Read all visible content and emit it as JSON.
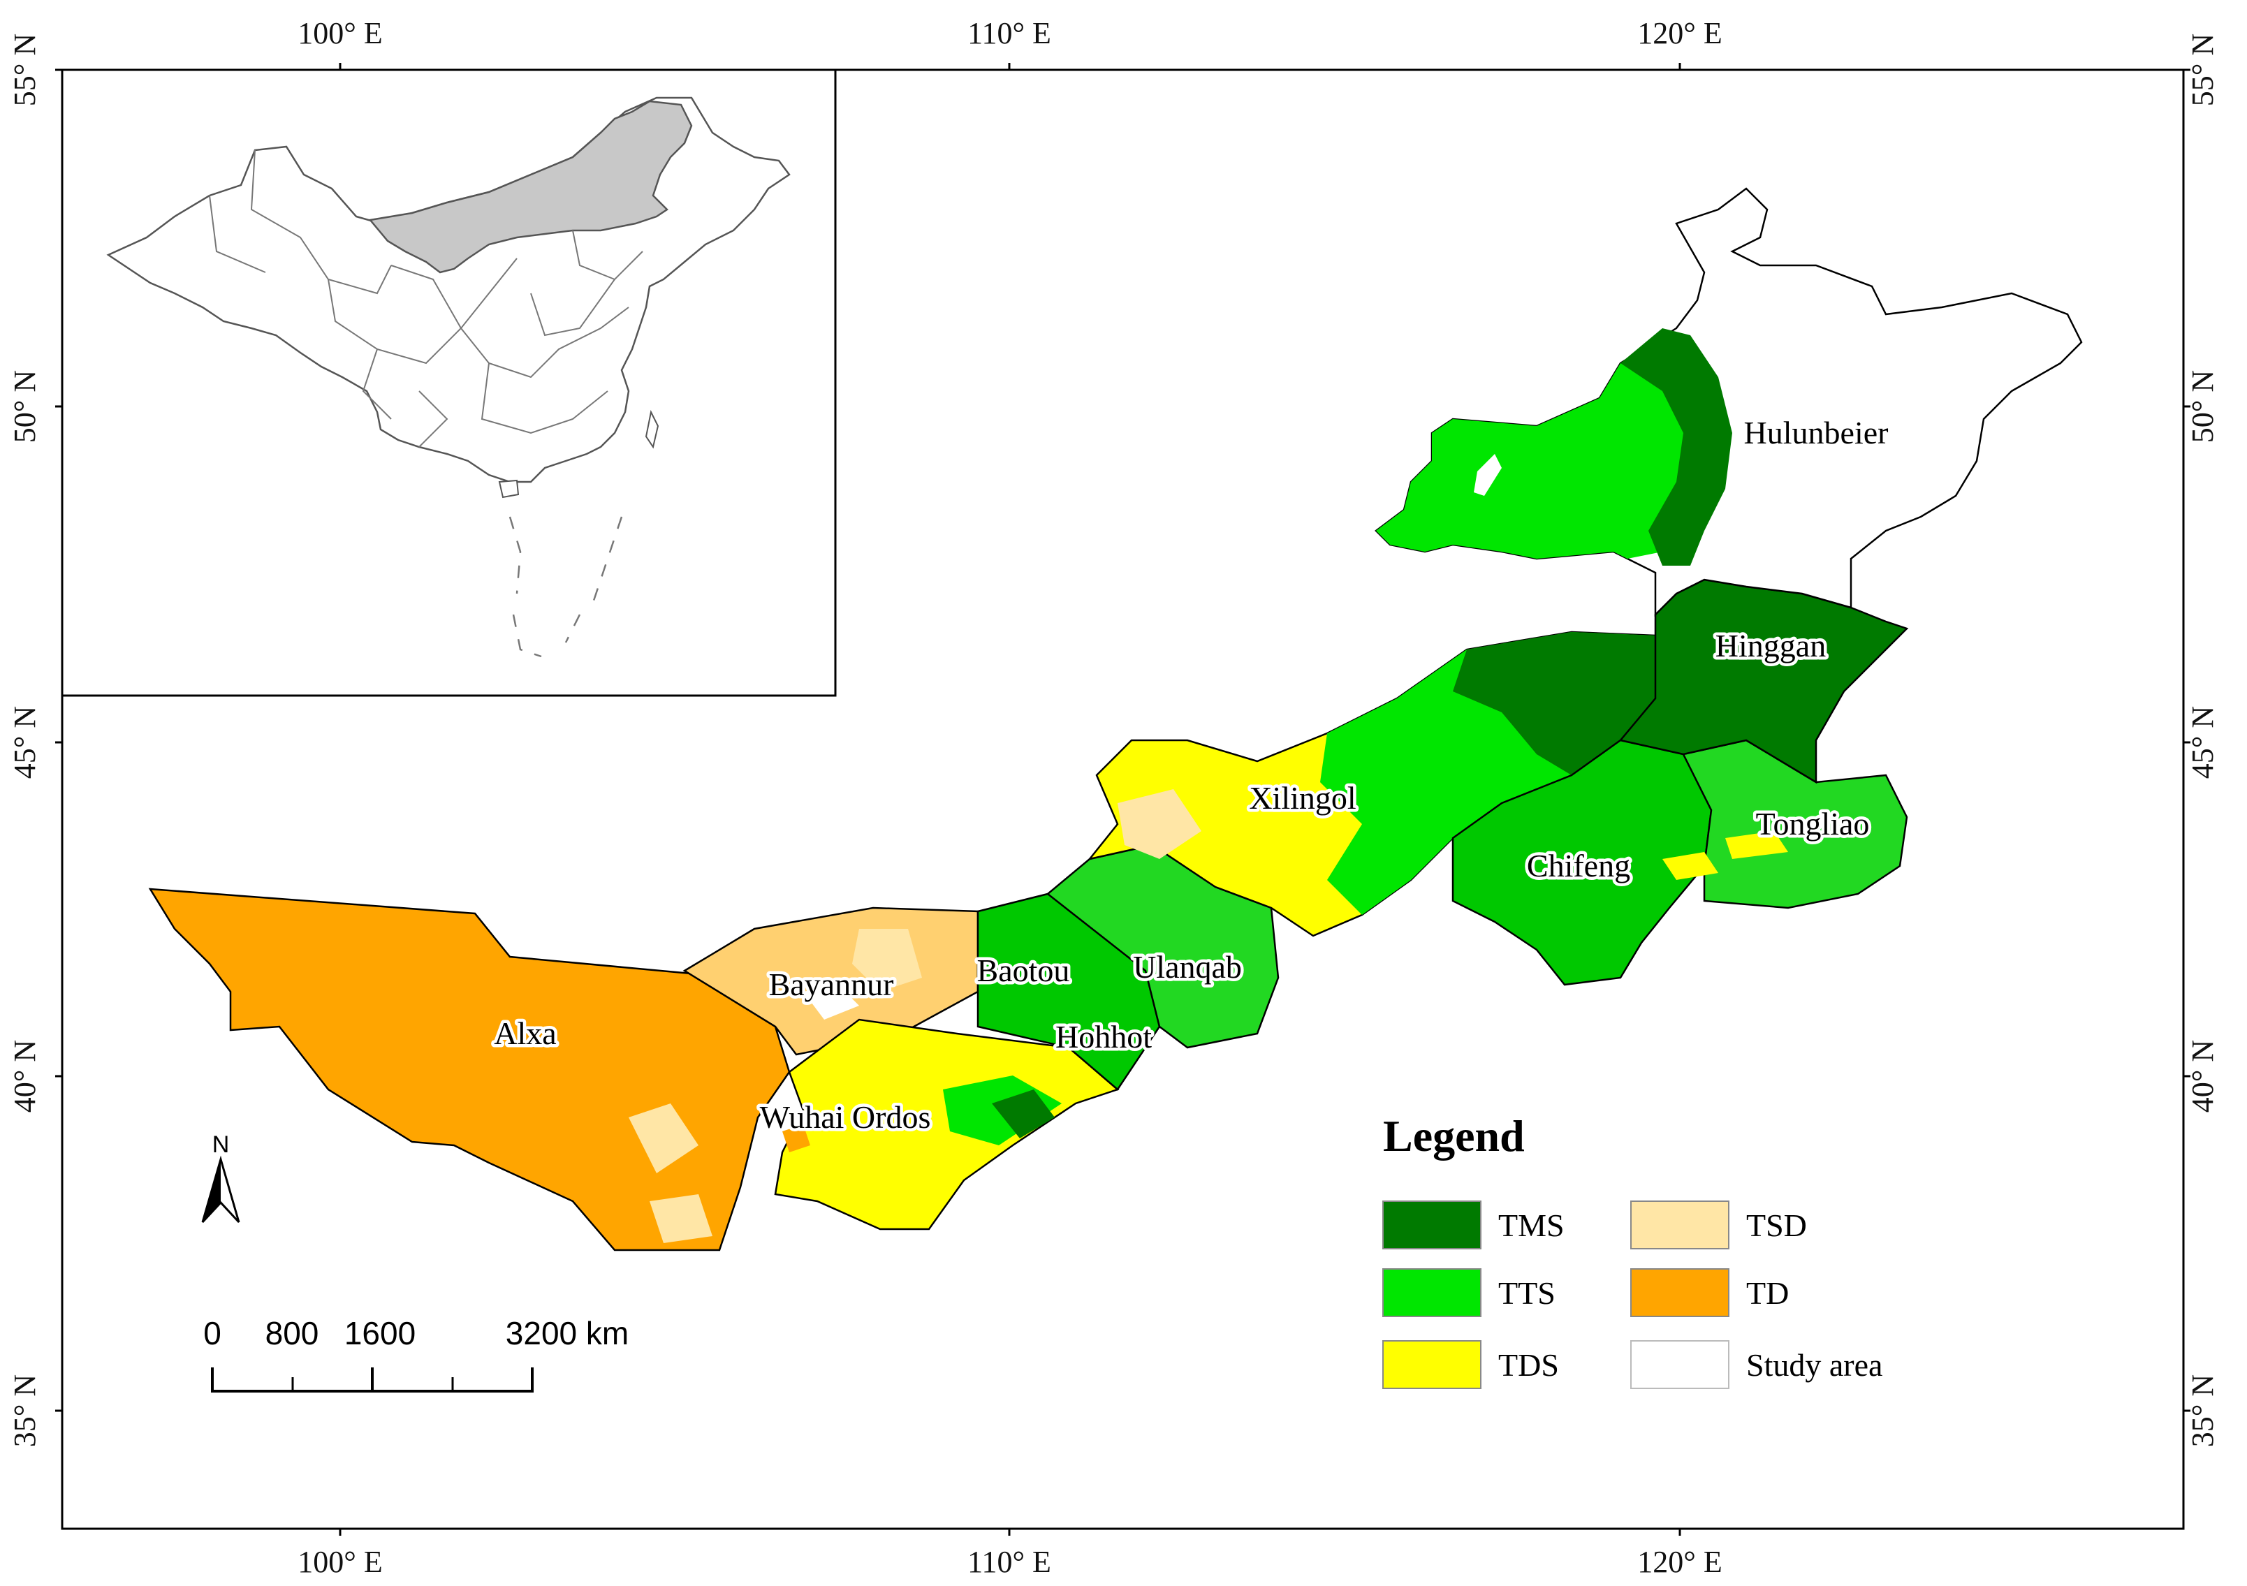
{
  "map": {
    "lon_ticks": [
      "100° E",
      "110° E",
      "120° E"
    ],
    "lat_ticks": [
      "55° N",
      "50° N",
      "45° N",
      "40° N",
      "35° N"
    ],
    "regions": [
      "Hulunbeier",
      "Hinggan",
      "Xilingol",
      "Tongliao",
      "Chifeng",
      "Ulanqab",
      "Baotou",
      "Bayannur",
      "Hohhot",
      "Alxa",
      "Wuhai Ordos"
    ]
  },
  "legend": {
    "title": "Legend",
    "items": [
      {
        "label": "TMS",
        "color": "#007a00"
      },
      {
        "label": "TTS",
        "color": "#00e600"
      },
      {
        "label": "TDS",
        "color": "#ffff00"
      },
      {
        "label": "TSD",
        "color": "#ffe6a6"
      },
      {
        "label": "TD",
        "color": "#ffa500"
      },
      {
        "label": "Study area",
        "color": "#ffffff"
      }
    ]
  },
  "scale_bar": {
    "labels": [
      "0",
      "800",
      "1600",
      "3200 km"
    ]
  },
  "north_arrow": {
    "label": "N"
  },
  "inset": {
    "highlight_color": "#c8c8c8"
  }
}
